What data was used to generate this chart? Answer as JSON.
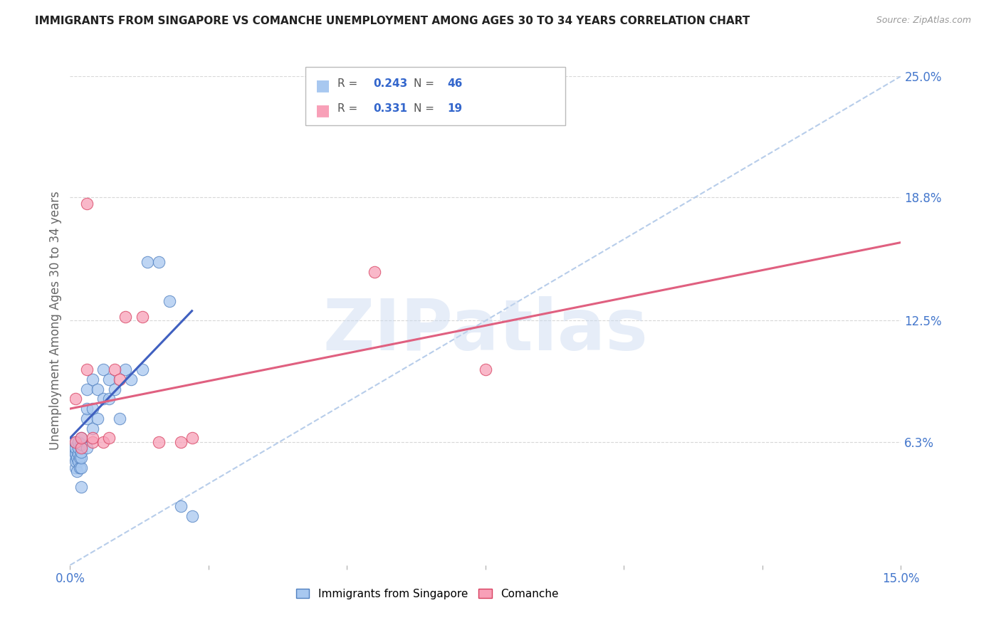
{
  "title": "IMMIGRANTS FROM SINGAPORE VS COMANCHE UNEMPLOYMENT AMONG AGES 30 TO 34 YEARS CORRELATION CHART",
  "source": "Source: ZipAtlas.com",
  "ylabel": "Unemployment Among Ages 30 to 34 years",
  "xlim": [
    0.0,
    0.15
  ],
  "ylim": [
    0.0,
    0.25
  ],
  "xticks": [
    0.0,
    0.025,
    0.05,
    0.075,
    0.1,
    0.125,
    0.15
  ],
  "xticklabels": [
    "0.0%",
    "",
    "",
    "",
    "",
    "",
    "15.0%"
  ],
  "yticks_right": [
    0.0,
    0.063,
    0.125,
    0.188,
    0.25
  ],
  "yticklabels_right": [
    "",
    "6.3%",
    "12.5%",
    "18.8%",
    "25.0%"
  ],
  "grid_color": "#d8d8d8",
  "watermark": "ZIPatlas",
  "watermark_color": "#c8d8f0",
  "legend_R1": "0.243",
  "legend_N1": "46",
  "legend_R2": "0.331",
  "legend_N2": "19",
  "blue_fill": "#a8c8f0",
  "blue_edge": "#5080c0",
  "pink_fill": "#f8a0b8",
  "pink_edge": "#d84060",
  "blue_line_color": "#4060c0",
  "pink_line_color": "#e06080",
  "diag_line_color": "#b0c8e8",
  "singapore_x": [
    0.0005,
    0.0005,
    0.0008,
    0.0008,
    0.001,
    0.001,
    0.001,
    0.001,
    0.001,
    0.0012,
    0.0012,
    0.0015,
    0.0015,
    0.0015,
    0.0015,
    0.0018,
    0.0018,
    0.002,
    0.002,
    0.002,
    0.002,
    0.002,
    0.002,
    0.003,
    0.003,
    0.003,
    0.003,
    0.004,
    0.004,
    0.004,
    0.005,
    0.005,
    0.006,
    0.006,
    0.007,
    0.007,
    0.008,
    0.009,
    0.01,
    0.011,
    0.013,
    0.014,
    0.016,
    0.018,
    0.02,
    0.022
  ],
  "singapore_y": [
    0.057,
    0.06,
    0.055,
    0.06,
    0.05,
    0.053,
    0.057,
    0.06,
    0.063,
    0.048,
    0.055,
    0.053,
    0.057,
    0.06,
    0.063,
    0.05,
    0.055,
    0.04,
    0.05,
    0.055,
    0.058,
    0.062,
    0.065,
    0.06,
    0.075,
    0.08,
    0.09,
    0.07,
    0.08,
    0.095,
    0.075,
    0.09,
    0.085,
    0.1,
    0.085,
    0.095,
    0.09,
    0.075,
    0.1,
    0.095,
    0.1,
    0.155,
    0.155,
    0.135,
    0.03,
    0.025
  ],
  "comanche_x": [
    0.001,
    0.001,
    0.002,
    0.002,
    0.003,
    0.003,
    0.004,
    0.004,
    0.006,
    0.007,
    0.008,
    0.009,
    0.01,
    0.013,
    0.016,
    0.02,
    0.022,
    0.055,
    0.075
  ],
  "comanche_y": [
    0.063,
    0.085,
    0.06,
    0.065,
    0.1,
    0.185,
    0.063,
    0.065,
    0.063,
    0.065,
    0.1,
    0.095,
    0.127,
    0.127,
    0.063,
    0.063,
    0.065,
    0.15,
    0.1
  ],
  "sg_trendline_x": [
    0.0,
    0.022
  ],
  "sg_trendline_y": [
    0.065,
    0.13
  ],
  "cm_trendline_x": [
    0.0,
    0.15
  ],
  "cm_trendline_y": [
    0.08,
    0.165
  ]
}
